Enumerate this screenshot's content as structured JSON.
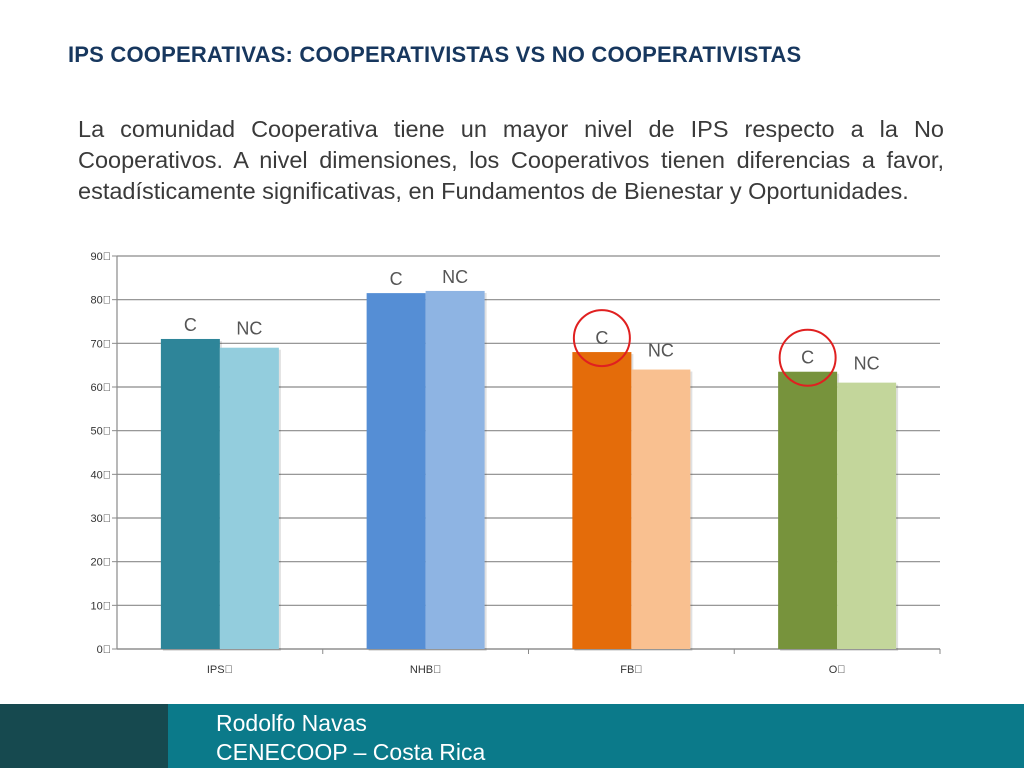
{
  "title": "IPS COOPERATIVAS: COOPERATIVISTAS VS NO COOPERATIVISTAS",
  "description": "La comunidad Cooperativa tiene un mayor nivel de IPS respecto a la No Cooperativos. A nivel dimensiones, los Cooperativos tienen diferencias a favor, estadísticamente significativas, en Fundamentos de Bienestar y Oportunidades.",
  "footer": {
    "author": "Rodolfo Navas",
    "org": "CENECOOP – Costa Rica"
  },
  "chart_data": {
    "type": "bar",
    "categories": [
      "IPS\u0000",
      "NHB\u0000",
      "FB\u0000",
      "O\u0000"
    ],
    "series": [
      {
        "name": "C",
        "values": [
          71,
          81.5,
          68,
          63.5
        ]
      },
      {
        "name": "NC",
        "values": [
          69,
          82,
          64,
          61
        ]
      }
    ],
    "colors": {
      "C": [
        "#2e8599",
        "#558ed5",
        "#e46c0a",
        "#77933c"
      ],
      "NC": [
        "#93cddd",
        "#8eb4e3",
        "#f9c090",
        "#c3d69b"
      ]
    },
    "highlighted": [
      {
        "category": "FB\u0000",
        "series": "C"
      },
      {
        "category": "O\u0000",
        "series": "C"
      }
    ],
    "highlight_color": "#e02020",
    "yticks": [
      "0\u0000",
      "10\u0000",
      "20\u0000",
      "30\u0000",
      "40\u0000",
      "50\u0000",
      "60\u0000",
      "70\u0000",
      "80\u0000",
      "90\u0000"
    ],
    "ylim": [
      0,
      90
    ],
    "grid": true,
    "legend": "none"
  }
}
